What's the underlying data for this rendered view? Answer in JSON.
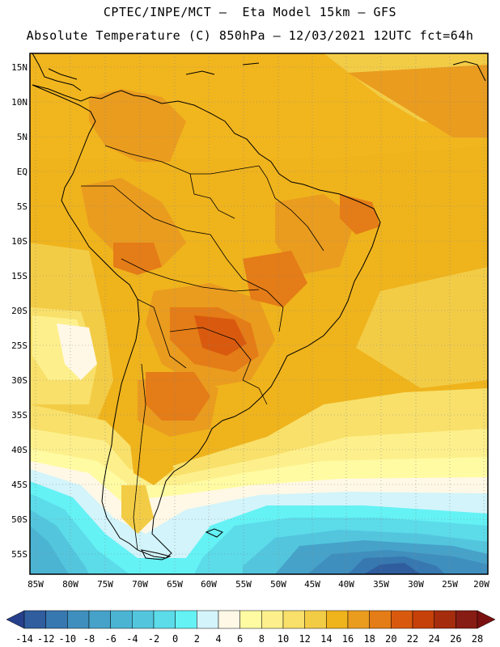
{
  "title_line1": "CPTEC/INPE/MCT –  Eta Model 15km – GFS",
  "title_line2": "Absolute Temperature (C) 850hPa – 12/03/2021 12UTC fct=64h",
  "lat_labels": [
    "15N",
    "10N",
    "5N",
    "EQ",
    "5S",
    "10S",
    "15S",
    "20S",
    "25S",
    "30S",
    "35S",
    "40S",
    "45S",
    "50S",
    "55S"
  ],
  "lon_labels": [
    "85W",
    "80W",
    "75W",
    "70W",
    "65W",
    "60W",
    "55W",
    "50W",
    "45W",
    "40W",
    "35W",
    "30W",
    "25W",
    "20W"
  ],
  "colorbar": {
    "labels": [
      "-14",
      "-12",
      "-10",
      "-8",
      "-6",
      "-4",
      "-2",
      "0",
      "2",
      "4",
      "6",
      "8",
      "10",
      "12",
      "14",
      "16",
      "18",
      "20",
      "22",
      "24",
      "26",
      "28"
    ],
    "colors": [
      "#27408b",
      "#2f5d9e",
      "#3878b0",
      "#3f8fbe",
      "#46a2c9",
      "#4cb4d3",
      "#53c6de",
      "#5cdbe9",
      "#64f2f5",
      "#d2f4fa",
      "#fff8e6",
      "#fffba3",
      "#fdf08c",
      "#f8e06a",
      "#f3cc46",
      "#efb31c",
      "#ea9c1f",
      "#e47c17",
      "#d95a0e",
      "#c54109",
      "#a52c0c",
      "#871c14",
      "#7a1010"
    ]
  }
}
